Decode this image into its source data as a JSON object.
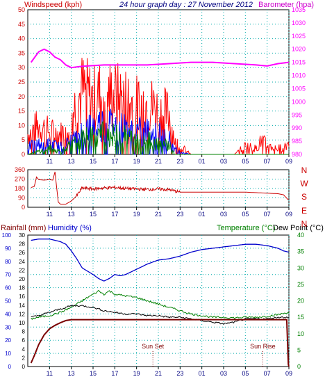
{
  "header": {
    "left_label": "Windspeed (kph)",
    "title": "24 hour graph day : 27 November 2012",
    "right_label": "Barometer (hpa)"
  },
  "colors": {
    "wind_gust": "#ff0000",
    "wind_avg": "#0000ff",
    "wind_low": "#008000",
    "barometer": "#ff00ff",
    "direction": "#cc0000",
    "humidity": "#0000cc",
    "temperature": "#008000",
    "dewpoint": "#000000",
    "rainfall": "#7a0000",
    "left_axis_wind": "#cc0000",
    "left_axis_humidity": "#0000cc",
    "right_axis_temp": "#008000",
    "grid": "#00aaaa",
    "title": "#000080"
  },
  "x_ticks": [
    "11",
    "13",
    "15",
    "17",
    "19",
    "21",
    "23",
    "01",
    "03",
    "05",
    "07",
    "09"
  ],
  "lower_header": {
    "rainfall": "Rainfall (mm)",
    "humidity": "Humidity (%)",
    "temperature": "Temperature (°C)",
    "dewpoint": "Dew Point (°C)"
  },
  "markers": {
    "sunset": "Sun Set",
    "sunrise": "Sun Rise"
  },
  "chart_data": [
    {
      "type": "line",
      "name": "wind-barometer",
      "ylim_left": [
        0,
        50
      ],
      "left_ticks": [
        0,
        5,
        10,
        15,
        20,
        25,
        30,
        35,
        40,
        45,
        50
      ],
      "ylim_right": [
        980,
        1035
      ],
      "right_ticks": [
        980,
        985,
        990,
        995,
        1000,
        1005,
        1010,
        1015,
        1020,
        1025,
        1030,
        1035
      ],
      "grid": true,
      "series": [
        {
          "key": "barometer",
          "x": [
            9.3,
            10.0,
            10.5,
            11.0,
            11.5,
            12.0,
            12.5,
            13.0,
            14.0,
            16.0,
            18.0,
            20.0,
            22.0,
            24.0,
            26.0,
            28.0,
            30.0,
            31.0,
            32.0,
            33.0
          ],
          "values": [
            1015.0,
            1019.0,
            1020.0,
            1019.0,
            1017.0,
            1016.0,
            1014.0,
            1013.0,
            1013.5,
            1014.0,
            1014.0,
            1014.0,
            1014.5,
            1015.0,
            1015.0,
            1014.5,
            1014.0,
            1013.6,
            1014.5,
            1015.0
          ]
        },
        {
          "key": "wind_gust",
          "note_sampling": "dense",
          "x": [
            9.0,
            10.0,
            11.0,
            12.0,
            12.5,
            13.0,
            13.5,
            14.0,
            15.0,
            16.0,
            17.0,
            18.0,
            19.0,
            20.0,
            21.0,
            22.0,
            22.5,
            23.0,
            24.0,
            25.0,
            26.0,
            27.0,
            28.0,
            29.0,
            30.0,
            30.5,
            31.0,
            32.0,
            33.0
          ],
          "values": [
            7,
            10,
            8,
            7,
            9,
            14,
            18,
            22,
            19,
            21,
            20,
            19,
            17,
            18,
            15,
            14,
            5,
            3,
            0,
            0,
            0,
            0,
            0,
            3,
            2,
            5,
            3,
            2,
            4
          ]
        },
        {
          "key": "wind_avg",
          "x": [
            9.0,
            10.0,
            11.0,
            12.0,
            13.0,
            14.0,
            15.0,
            16.0,
            17.0,
            18.0,
            19.0,
            20.0,
            21.0,
            22.0,
            22.5,
            23.0,
            24.0,
            33.0
          ],
          "values": [
            3,
            4,
            4,
            3,
            5,
            9,
            11,
            12,
            11,
            10,
            9,
            9,
            8,
            6,
            2,
            1,
            0,
            0
          ]
        },
        {
          "key": "wind_low",
          "x": [
            9.0,
            10.0,
            11.0,
            12.0,
            13.0,
            14.0,
            15.0,
            16.0,
            17.0,
            18.0,
            19.0,
            20.0,
            21.0,
            22.0,
            22.5,
            23.0,
            33.0
          ],
          "values": [
            0,
            1,
            2,
            1,
            3,
            5,
            6,
            7,
            6,
            6,
            5,
            5,
            4,
            3,
            0,
            0,
            0
          ]
        }
      ]
    },
    {
      "type": "line",
      "name": "wind-direction",
      "ylim": [
        0,
        360
      ],
      "left_ticks": [
        0,
        90,
        180,
        270,
        360
      ],
      "compass_labels": [
        "N",
        "W",
        "S",
        "E",
        "N"
      ],
      "grid": true,
      "series": [
        {
          "key": "direction",
          "x": [
            9.3,
            9.6,
            9.8,
            10.0,
            10.5,
            11.0,
            11.3,
            11.5,
            11.8,
            12.0,
            12.5,
            13.0,
            13.5,
            14.0,
            15.0,
            16.0,
            17.0,
            18.0,
            19.0,
            20.0,
            21.0,
            22.0,
            23.0,
            26.0,
            29.0,
            32.0,
            32.5,
            33.0
          ],
          "values": [
            190,
            200,
            290,
            265,
            260,
            265,
            260,
            340,
            50,
            30,
            30,
            60,
            110,
            185,
            175,
            185,
            190,
            180,
            175,
            170,
            175,
            168,
            145,
            145,
            145,
            130,
            120,
            65
          ]
        }
      ]
    },
    {
      "type": "line",
      "name": "temperature-humidity-rain",
      "ylim_humidity": [
        0,
        100
      ],
      "humidity_ticks": [
        0,
        10,
        20,
        30,
        40,
        50,
        60,
        70,
        80,
        90,
        100
      ],
      "ylim_rainfall": [
        0,
        30
      ],
      "rainfall_ticks": [
        0,
        2,
        4,
        6,
        8,
        10,
        12,
        14,
        16,
        18,
        20,
        22,
        24,
        26,
        28,
        30
      ],
      "ylim_temperature": [
        0,
        40
      ],
      "temperature_ticks": [
        0,
        5,
        10,
        15,
        20,
        25,
        30,
        35,
        40
      ],
      "grid": true,
      "series": [
        {
          "key": "humidity",
          "axis": "humidity",
          "x": [
            9.3,
            10.0,
            11.0,
            12.0,
            12.5,
            13.0,
            13.5,
            14.0,
            15.0,
            15.5,
            16.0,
            16.5,
            17.0,
            17.5,
            18.0,
            19.0,
            20.0,
            21.0,
            22.0,
            23.0,
            24.0,
            25.0,
            26.0,
            27.0,
            28.0,
            29.0,
            30.0,
            31.0,
            32.0,
            32.5,
            33.0
          ],
          "values": [
            96,
            97,
            97,
            95,
            93,
            88,
            82,
            75,
            70,
            67,
            65,
            67,
            70,
            69,
            70,
            74,
            78,
            81,
            82,
            84,
            87,
            89,
            90,
            91,
            92,
            93,
            93,
            92,
            90,
            88,
            87
          ]
        },
        {
          "key": "temperature",
          "axis": "temperature",
          "x": [
            9.3,
            10.0,
            11.0,
            12.0,
            13.0,
            14.0,
            15.0,
            15.5,
            16.0,
            16.5,
            17.0,
            18.0,
            19.0,
            20.0,
            21.0,
            22.0,
            23.0,
            24.0,
            25.0,
            26.0,
            27.0,
            28.0,
            29.0,
            30.0,
            31.0,
            32.0,
            33.0
          ],
          "values": [
            14.5,
            15,
            15.5,
            16.5,
            18,
            20,
            22,
            23,
            22,
            23,
            22,
            21.5,
            21,
            20,
            19,
            18,
            17,
            16,
            15.5,
            15,
            15,
            14.8,
            15,
            15,
            15.3,
            15.8,
            16.5
          ]
        },
        {
          "key": "dewpoint",
          "axis": "temperature",
          "x": [
            9.3,
            10.0,
            11.0,
            12.0,
            13.0,
            14.0,
            15.0,
            16.0,
            17.0,
            18.0,
            19.0,
            20.0,
            21.0,
            22.0,
            23.0,
            24.0,
            25.0,
            26.0,
            27.0,
            28.0,
            29.0,
            30.0,
            31.0,
            32.0,
            33.0
          ],
          "values": [
            15,
            15.5,
            16.5,
            17.5,
            18.5,
            18.5,
            18,
            17,
            16.5,
            16,
            16,
            15.5,
            15.5,
            15,
            15,
            14.5,
            14,
            13.5,
            13,
            13.5,
            14.5,
            14.5,
            14.5,
            15,
            15
          ]
        },
        {
          "key": "rainfall",
          "axis": "rainfall",
          "x": [
            9.3,
            9.6,
            10.0,
            10.5,
            11.0,
            11.5,
            12.0,
            12.5,
            13.0,
            14.0,
            20.0,
            26.0,
            32.0,
            32.8,
            32.95,
            33.0
          ],
          "values": [
            0.8,
            2.5,
            5.0,
            7.2,
            8.6,
            9.4,
            10.0,
            10.5,
            10.7,
            10.7,
            10.7,
            10.7,
            10.7,
            10.7,
            0.5,
            0.0
          ]
        }
      ]
    }
  ]
}
